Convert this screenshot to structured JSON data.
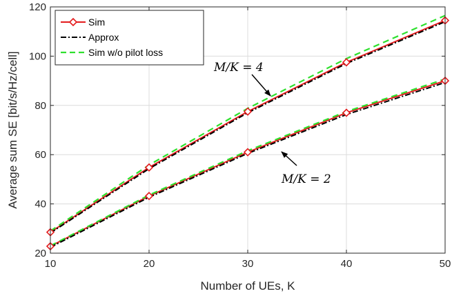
{
  "chart_data": {
    "type": "line",
    "xlabel": "Number of UEs, K",
    "ylabel": "Average sum SE [bit/s/Hz/cell]",
    "xlim": [
      10,
      50
    ],
    "ylim": [
      20,
      120
    ],
    "xticks": [
      10,
      20,
      30,
      40,
      50
    ],
    "yticks": [
      20,
      40,
      60,
      80,
      100,
      120
    ],
    "grid": true,
    "legend_position": "top-left",
    "x": [
      10,
      20,
      30,
      40,
      50
    ],
    "legend": [
      {
        "name": "Sim",
        "style": "solid",
        "color": "#e31a1c",
        "marker": "diamond"
      },
      {
        "name": "Approx",
        "style": "dashdot",
        "color": "#000000"
      },
      {
        "name": "Sim w/o pilot loss",
        "style": "dashed",
        "color": "#2ee02e"
      }
    ],
    "groups": [
      {
        "annotation": "M/K = 4",
        "sim": [
          28.5,
          54.8,
          77.5,
          97.5,
          114.5
        ],
        "approx": [
          28.2,
          54.3,
          77.0,
          97.0,
          114.0
        ],
        "no_pilot_loss": [
          29.0,
          55.8,
          78.8,
          99.0,
          116.5
        ]
      },
      {
        "annotation": "M/K = 2",
        "sim": [
          22.8,
          43.2,
          61.0,
          77.0,
          90.0
        ],
        "approx": [
          22.4,
          42.7,
          60.5,
          76.3,
          89.3
        ],
        "no_pilot_loss": [
          23.0,
          43.6,
          61.6,
          77.5,
          90.7
        ]
      }
    ]
  }
}
